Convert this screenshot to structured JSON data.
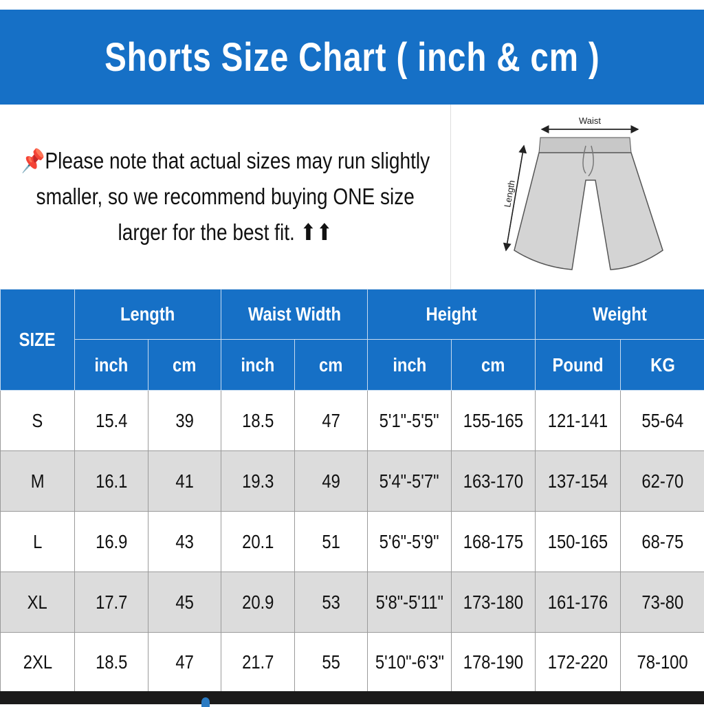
{
  "title": "Shorts Size Chart ( inch & cm )",
  "note": {
    "icon": "pushpin-icon",
    "lines": [
      "Please note that actual sizes may run slightly",
      "smaller, so we recommend buying ONE size",
      "larger for the best fit. ⬆⬆"
    ]
  },
  "diagram": {
    "waist_label": "Waist",
    "length_label": "Length"
  },
  "table": {
    "size_header": "SIZE",
    "groups": [
      "Length",
      "Waist Width",
      "Height",
      "Weight"
    ],
    "subheaders": [
      "inch",
      "cm",
      "inch",
      "cm",
      "inch",
      "cm",
      "Pound",
      "KG"
    ],
    "rows": [
      [
        "S",
        "15.4",
        "39",
        "18.5",
        "47",
        "5'1\"-5'5\"",
        "155-165",
        "121-141",
        "55-64"
      ],
      [
        "M",
        "16.1",
        "41",
        "19.3",
        "49",
        "5'4\"-5'7\"",
        "163-170",
        "137-154",
        "62-70"
      ],
      [
        "L",
        "16.9",
        "43",
        "20.1",
        "51",
        "5'6\"-5'9\"",
        "168-175",
        "150-165",
        "68-75"
      ],
      [
        "XL",
        "17.7",
        "45",
        "20.9",
        "53",
        "5'8\"-5'11\"",
        "173-180",
        "161-176",
        "73-80"
      ],
      [
        "2XL",
        "18.5",
        "47",
        "21.7",
        "55",
        "5'10\"-6'3\"",
        "178-190",
        "172-220",
        "78-100"
      ]
    ]
  },
  "colors": {
    "header_blue": "#1670c6",
    "alt_row": "#dcdcdc"
  }
}
